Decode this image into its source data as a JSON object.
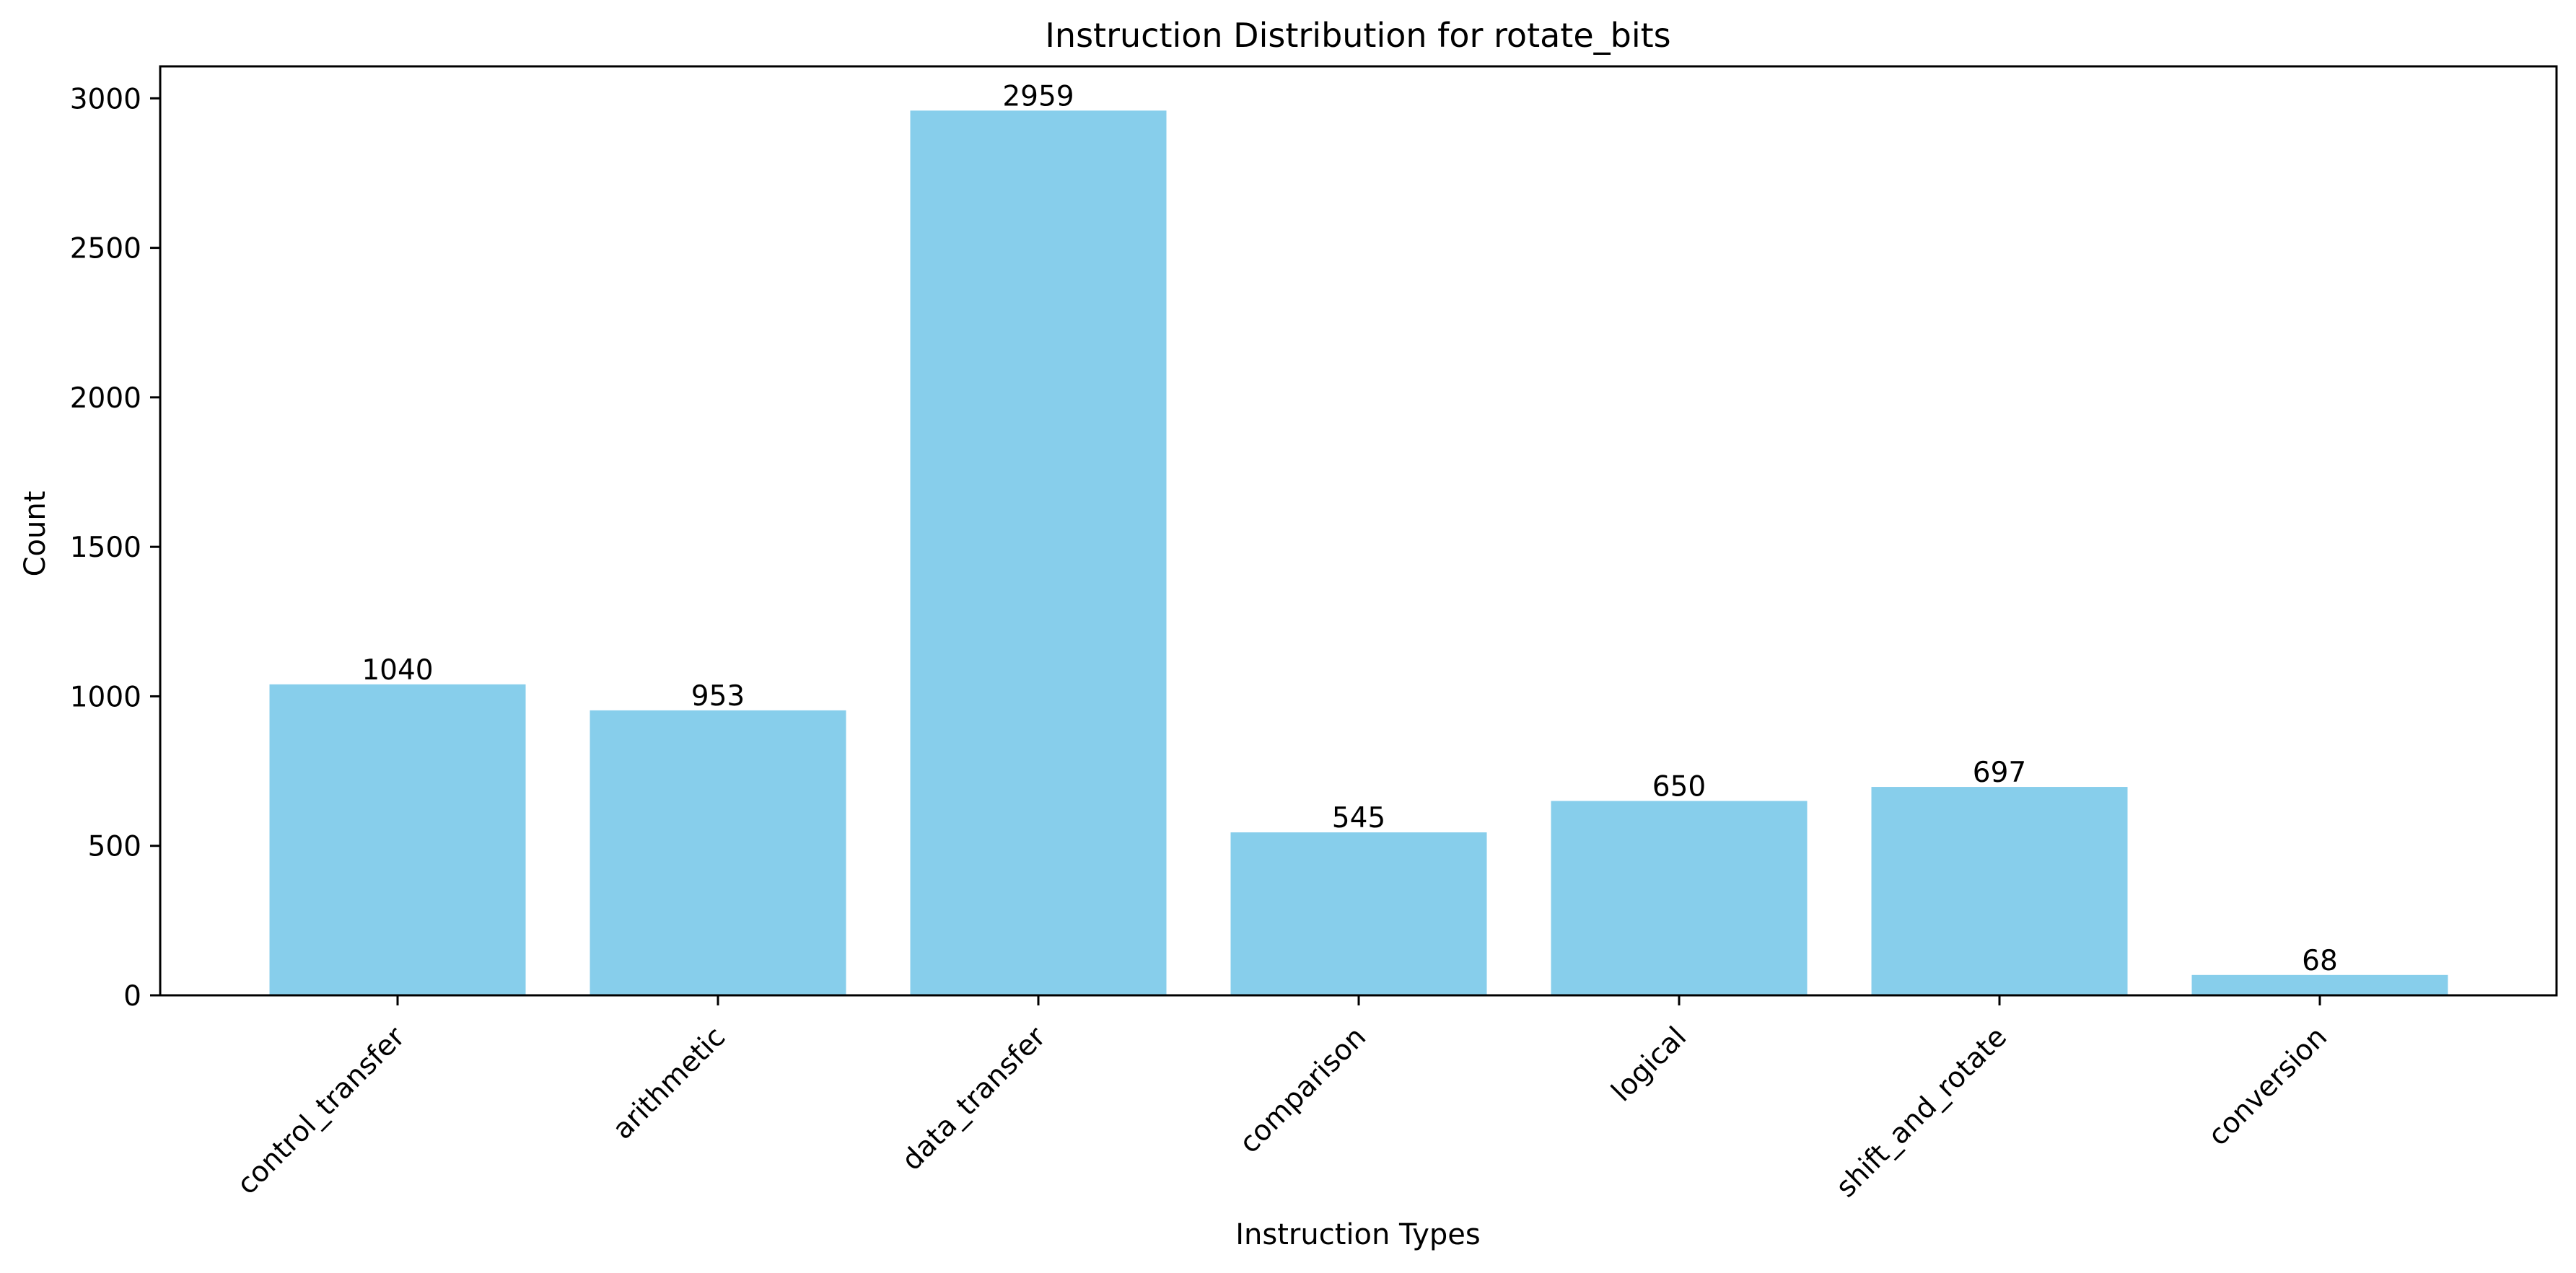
{
  "chart_data": {
    "type": "bar",
    "title": "Instruction Distribution for rotate_bits",
    "xlabel": "Instruction Types",
    "ylabel": "Count",
    "categories": [
      "control_transfer",
      "arithmetic",
      "data_transfer",
      "comparison",
      "logical",
      "shift_and_rotate",
      "conversion"
    ],
    "values": [
      1040,
      953,
      2959,
      545,
      650,
      697,
      68
    ],
    "value_labels": [
      "1040",
      "953",
      "2959",
      "545",
      "650",
      "697",
      "68"
    ],
    "ylim": [
      0,
      3106.95
    ],
    "yticks": [
      0,
      500,
      1000,
      1500,
      2000,
      2500,
      3000
    ],
    "ytick_labels": [
      "0",
      "500",
      "1000",
      "1500",
      "2000",
      "2500",
      "3000"
    ],
    "grid": false,
    "legend": "none",
    "colors": {
      "bar": "#87ceeb",
      "axis": "#000000",
      "background": "#ffffff"
    }
  }
}
